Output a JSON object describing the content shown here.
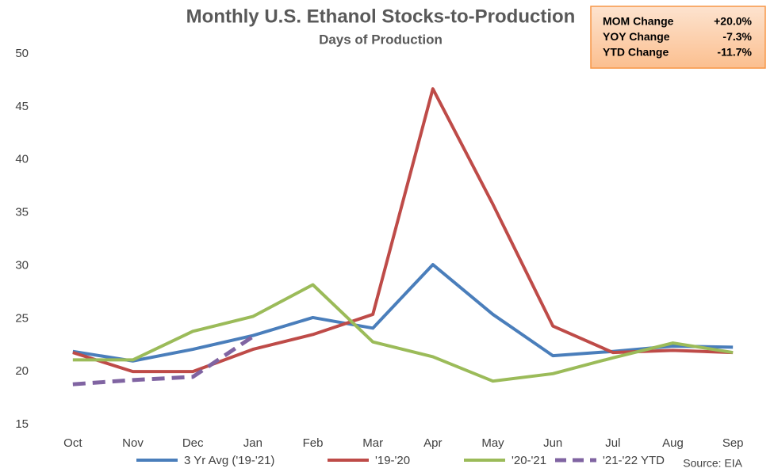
{
  "chart_data": {
    "type": "line",
    "title": "Monthly U.S. Ethanol Stocks-to-Production",
    "subtitle": "Days of Production",
    "categories": [
      "Oct",
      "Nov",
      "Dec",
      "Jan",
      "Feb",
      "Mar",
      "Apr",
      "May",
      "Jun",
      "Jul",
      "Aug",
      "Sep"
    ],
    "series": [
      {
        "name": "3 Yr Avg ('19-'21)",
        "color": "#4a7ebb",
        "values": [
          21.9,
          21.0,
          22.1,
          23.4,
          25.1,
          24.1,
          30.1,
          25.4,
          21.5,
          21.9,
          22.4,
          22.3
        ]
      },
      {
        "name": "'19-'20",
        "color": "#be4b48",
        "values": [
          21.8,
          20.0,
          20.0,
          22.1,
          23.5,
          25.4,
          46.7,
          35.8,
          24.3,
          21.8,
          22.0,
          21.8
        ]
      },
      {
        "name": "'20-'21",
        "color": "#9bbb59",
        "values": [
          21.1,
          21.1,
          23.8,
          25.2,
          28.2,
          22.8,
          21.4,
          19.1,
          19.8,
          21.3,
          22.7,
          21.8
        ]
      },
      {
        "name": "'21-'22 YTD",
        "color": "#8064a2",
        "dashed": true,
        "values": [
          18.8,
          19.2,
          19.5,
          23.3,
          null,
          null,
          null,
          null,
          null,
          null,
          null,
          null
        ]
      }
    ],
    "ylim": [
      15,
      50
    ],
    "yticks": [
      15,
      20,
      25,
      30,
      35,
      40,
      45,
      50
    ],
    "grid": false,
    "legend": "bottom",
    "info_box": {
      "rows": [
        [
          "MOM Change",
          "+20.0%"
        ],
        [
          "YOY Change",
          "-7.3%"
        ],
        [
          "YTD Change",
          "-11.7%"
        ]
      ]
    },
    "source": "Source: EIA"
  }
}
